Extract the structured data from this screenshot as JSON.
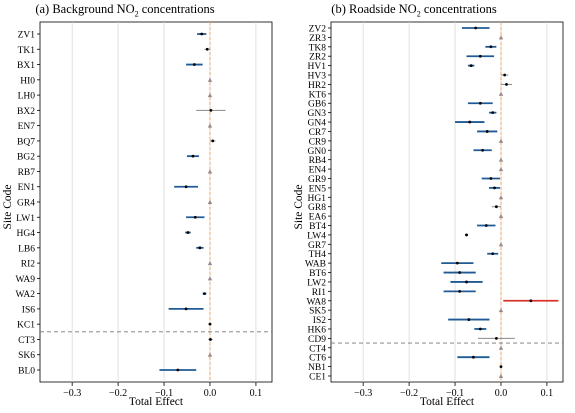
{
  "chart_data": [
    {
      "type": "forest",
      "title_parts": [
        "(a) Background NO",
        "2",
        " concentrations"
      ],
      "xlabel": "Total Effect",
      "ylabel": "Site Code",
      "xlim": [
        -0.37,
        0.135
      ],
      "xticks": [
        -0.3,
        -0.2,
        -0.1,
        0.0,
        0.1
      ],
      "xtick_labels": [
        "−0.3",
        "−0.2",
        "−0.1",
        "0.0",
        "0.1"
      ],
      "grid": true,
      "reference_line": 0.0,
      "colors": {
        "significant": "#1f5a96",
        "positive_significant": "#d9342b",
        "not_significant": "#888888",
        "reference": "#f0a060",
        "divider": "#777777"
      },
      "divider_after": "KC1",
      "sites": [
        {
          "code": "ZV1",
          "estimate": -0.018,
          "lo": -0.028,
          "hi": -0.008,
          "sig": "neg"
        },
        {
          "code": "TK1",
          "estimate": -0.006,
          "lo": -0.012,
          "hi": 0.001,
          "sig": "none"
        },
        {
          "code": "BX1",
          "estimate": -0.034,
          "lo": -0.052,
          "hi": -0.016,
          "sig": "neg"
        },
        {
          "code": "HI0",
          "estimate": 0.0,
          "lo": 0.0,
          "hi": 0.0,
          "sig": "none"
        },
        {
          "code": "LH0",
          "estimate": 0.0,
          "lo": 0.0,
          "hi": 0.0,
          "sig": "none"
        },
        {
          "code": "BX2",
          "estimate": 0.002,
          "lo": -0.03,
          "hi": 0.034,
          "sig": "none"
        },
        {
          "code": "EN7",
          "estimate": 0.0,
          "lo": 0.0,
          "hi": 0.0,
          "sig": "none"
        },
        {
          "code": "BQ7",
          "estimate": 0.006,
          "lo": 0.0,
          "hi": 0.012,
          "sig": "none"
        },
        {
          "code": "BG2",
          "estimate": -0.037,
          "lo": -0.05,
          "hi": -0.024,
          "sig": "neg"
        },
        {
          "code": "RB7",
          "estimate": 0.0,
          "lo": 0.0,
          "hi": 0.0,
          "sig": "none"
        },
        {
          "code": "EN1",
          "estimate": -0.052,
          "lo": -0.078,
          "hi": -0.026,
          "sig": "neg"
        },
        {
          "code": "GR4",
          "estimate": 0.0,
          "lo": 0.0,
          "hi": 0.0,
          "sig": "none"
        },
        {
          "code": "LW1",
          "estimate": -0.032,
          "lo": -0.052,
          "hi": -0.012,
          "sig": "neg"
        },
        {
          "code": "HG4",
          "estimate": -0.048,
          "lo": -0.054,
          "hi": -0.042,
          "sig": "neg"
        },
        {
          "code": "LB6",
          "estimate": -0.022,
          "lo": -0.03,
          "hi": -0.014,
          "sig": "neg"
        },
        {
          "code": "RI2",
          "estimate": 0.0,
          "lo": 0.0,
          "hi": 0.0,
          "sig": "none"
        },
        {
          "code": "WA9",
          "estimate": 0.0,
          "lo": 0.0,
          "hi": 0.0,
          "sig": "none"
        },
        {
          "code": "WA2",
          "estimate": -0.012,
          "lo": -0.016,
          "hi": -0.008,
          "sig": "neg"
        },
        {
          "code": "IS6",
          "estimate": -0.052,
          "lo": -0.09,
          "hi": -0.014,
          "sig": "neg"
        },
        {
          "code": "KC1",
          "estimate": 0.0,
          "lo": -0.003,
          "hi": 0.003,
          "sig": "none"
        },
        {
          "code": "CT3",
          "estimate": 0.001,
          "lo": -0.004,
          "hi": 0.006,
          "sig": "none"
        },
        {
          "code": "SK6",
          "estimate": 0.0,
          "lo": 0.0,
          "hi": 0.0,
          "sig": "none"
        },
        {
          "code": "BL0",
          "estimate": -0.07,
          "lo": -0.11,
          "hi": -0.03,
          "sig": "neg"
        }
      ]
    },
    {
      "type": "forest",
      "title_parts": [
        "(b) Roadside NO",
        "2",
        " concentrations"
      ],
      "xlabel": "Total Effect",
      "ylabel": "Site Code",
      "xlim": [
        -0.37,
        0.135
      ],
      "xticks": [
        -0.3,
        -0.2,
        -0.1,
        0.0,
        0.1
      ],
      "xtick_labels": [
        "−0.3",
        "−0.2",
        "−0.1",
        "0.0",
        "0.1"
      ],
      "grid": true,
      "reference_line": 0.0,
      "colors": {
        "significant": "#1f5a96",
        "positive_significant": "#d9342b",
        "not_significant": "#888888",
        "reference": "#f0a060",
        "divider": "#777777"
      },
      "divider_after": "CD9",
      "sites": [
        {
          "code": "ZV2",
          "estimate": -0.055,
          "lo": -0.085,
          "hi": -0.025,
          "sig": "neg"
        },
        {
          "code": "ZR3",
          "estimate": 0.0,
          "lo": 0.0,
          "hi": 0.0,
          "sig": "none"
        },
        {
          "code": "TK8",
          "estimate": -0.022,
          "lo": -0.034,
          "hi": -0.01,
          "sig": "neg"
        },
        {
          "code": "ZR2",
          "estimate": -0.045,
          "lo": -0.075,
          "hi": -0.015,
          "sig": "neg"
        },
        {
          "code": "HV1",
          "estimate": -0.065,
          "lo": -0.072,
          "hi": -0.058,
          "sig": "neg"
        },
        {
          "code": "HV3",
          "estimate": 0.008,
          "lo": 0.0,
          "hi": 0.016,
          "sig": "none"
        },
        {
          "code": "HR2",
          "estimate": 0.012,
          "lo": 0.0,
          "hi": 0.024,
          "sig": "none"
        },
        {
          "code": "KT6",
          "estimate": 0.0,
          "lo": 0.0,
          "hi": 0.0,
          "sig": "none"
        },
        {
          "code": "GB6",
          "estimate": -0.045,
          "lo": -0.072,
          "hi": -0.018,
          "sig": "neg"
        },
        {
          "code": "GN3",
          "estimate": -0.018,
          "lo": -0.026,
          "hi": -0.01,
          "sig": "neg"
        },
        {
          "code": "GN4",
          "estimate": -0.068,
          "lo": -0.1,
          "hi": -0.036,
          "sig": "neg"
        },
        {
          "code": "CR7",
          "estimate": -0.03,
          "lo": -0.052,
          "hi": -0.008,
          "sig": "neg"
        },
        {
          "code": "CR9",
          "estimate": 0.0,
          "lo": 0.0,
          "hi": 0.0,
          "sig": "none"
        },
        {
          "code": "GN0",
          "estimate": -0.04,
          "lo": -0.06,
          "hi": -0.02,
          "sig": "neg"
        },
        {
          "code": "RB4",
          "estimate": 0.0,
          "lo": 0.0,
          "hi": 0.0,
          "sig": "none"
        },
        {
          "code": "EN4",
          "estimate": 0.0,
          "lo": 0.0,
          "hi": 0.0,
          "sig": "none"
        },
        {
          "code": "GR9",
          "estimate": -0.022,
          "lo": -0.042,
          "hi": -0.002,
          "sig": "neg"
        },
        {
          "code": "EN5",
          "estimate": -0.014,
          "lo": -0.026,
          "hi": -0.002,
          "sig": "neg"
        },
        {
          "code": "HG1",
          "estimate": 0.0,
          "lo": 0.0,
          "hi": 0.0,
          "sig": "none"
        },
        {
          "code": "GR8",
          "estimate": -0.01,
          "lo": -0.02,
          "hi": 0.0,
          "sig": "none"
        },
        {
          "code": "EA6",
          "estimate": 0.0,
          "lo": 0.0,
          "hi": 0.0,
          "sig": "none"
        },
        {
          "code": "BT4",
          "estimate": -0.032,
          "lo": -0.052,
          "hi": -0.012,
          "sig": "neg"
        },
        {
          "code": "LW4",
          "estimate": -0.075,
          "lo": -0.078,
          "hi": -0.072,
          "sig": "neg"
        },
        {
          "code": "GR7",
          "estimate": 0.0,
          "lo": 0.0,
          "hi": 0.0,
          "sig": "none"
        },
        {
          "code": "TH4",
          "estimate": -0.018,
          "lo": -0.03,
          "hi": -0.006,
          "sig": "neg"
        },
        {
          "code": "WAB",
          "estimate": -0.095,
          "lo": -0.13,
          "hi": -0.06,
          "sig": "neg"
        },
        {
          "code": "BT6",
          "estimate": -0.09,
          "lo": -0.125,
          "hi": -0.055,
          "sig": "neg"
        },
        {
          "code": "LW2",
          "estimate": -0.075,
          "lo": -0.11,
          "hi": -0.04,
          "sig": "neg"
        },
        {
          "code": "RI1",
          "estimate": -0.09,
          "lo": -0.125,
          "hi": -0.055,
          "sig": "neg"
        },
        {
          "code": "WA8",
          "estimate": 0.065,
          "lo": 0.005,
          "hi": 0.125,
          "sig": "pos"
        },
        {
          "code": "SK5",
          "estimate": 0.0,
          "lo": 0.0,
          "hi": 0.0,
          "sig": "none"
        },
        {
          "code": "IS2",
          "estimate": -0.07,
          "lo": -0.115,
          "hi": -0.025,
          "sig": "neg"
        },
        {
          "code": "HK6",
          "estimate": -0.045,
          "lo": -0.058,
          "hi": -0.032,
          "sig": "neg"
        },
        {
          "code": "CD9",
          "estimate": -0.01,
          "lo": -0.05,
          "hi": 0.03,
          "sig": "none"
        },
        {
          "code": "CT4",
          "estimate": 0.0,
          "lo": 0.0,
          "hi": 0.0,
          "sig": "none"
        },
        {
          "code": "CT6",
          "estimate": -0.06,
          "lo": -0.095,
          "hi": -0.025,
          "sig": "neg"
        },
        {
          "code": "NB1",
          "estimate": 0.0,
          "lo": -0.002,
          "hi": 0.002,
          "sig": "none"
        },
        {
          "code": "CE1",
          "estimate": 0.0,
          "lo": 0.0,
          "hi": 0.0,
          "sig": "none"
        }
      ]
    }
  ]
}
